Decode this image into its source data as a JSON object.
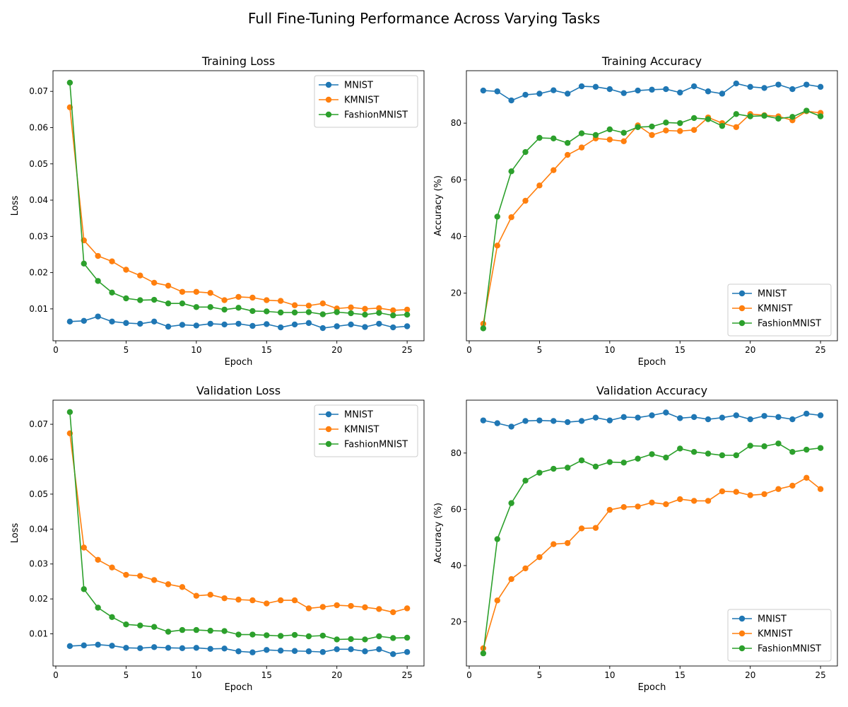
{
  "figure": {
    "title": "Full Fine-Tuning Performance Across Varying Tasks"
  },
  "colors": {
    "MNIST": "#1f77b4",
    "KMNIST": "#ff7f0e",
    "FashionMNIST": "#2ca02c"
  },
  "chart_data": [
    {
      "type": "line",
      "title": "Training Loss",
      "xlabel": "Epoch",
      "ylabel": "Loss",
      "xlim": [
        -0.2,
        26.2
      ],
      "ylim": [
        0.0012,
        0.0757
      ],
      "xticks": [
        0,
        5,
        10,
        15,
        20,
        25
      ],
      "yticks": [
        0.01,
        0.02,
        0.03,
        0.04,
        0.05,
        0.06,
        0.07
      ],
      "ytick_labels": [
        "0.01",
        "0.02",
        "0.03",
        "0.04",
        "0.05",
        "0.06",
        "0.07"
      ],
      "legend": "top-right",
      "grid": false,
      "x": [
        1,
        2,
        3,
        4,
        5,
        6,
        7,
        8,
        9,
        10,
        11,
        12,
        13,
        14,
        15,
        16,
        17,
        18,
        19,
        20,
        21,
        22,
        23,
        24,
        25
      ],
      "series": [
        {
          "name": "MNIST",
          "values": [
            0.0065,
            0.0067,
            0.0079,
            0.0065,
            0.0061,
            0.0059,
            0.0065,
            0.0051,
            0.0056,
            0.0054,
            0.0059,
            0.0057,
            0.0059,
            0.0053,
            0.0058,
            0.0049,
            0.0057,
            0.0061,
            0.0047,
            0.0052,
            0.0057,
            0.005,
            0.0059,
            0.0049,
            0.0052
          ]
        },
        {
          "name": "KMNIST",
          "values": [
            0.0656,
            0.0289,
            0.0246,
            0.0231,
            0.0208,
            0.0192,
            0.0172,
            0.0164,
            0.0147,
            0.0147,
            0.0144,
            0.0124,
            0.0133,
            0.0131,
            0.0124,
            0.0122,
            0.011,
            0.0109,
            0.0115,
            0.0101,
            0.0104,
            0.01,
            0.0102,
            0.0096,
            0.0098
          ]
        },
        {
          "name": "FashionMNIST",
          "values": [
            0.0724,
            0.0225,
            0.0177,
            0.0145,
            0.0129,
            0.0124,
            0.0125,
            0.0115,
            0.0115,
            0.0105,
            0.0105,
            0.0098,
            0.0103,
            0.0094,
            0.0093,
            0.009,
            0.009,
            0.0091,
            0.0085,
            0.0091,
            0.0088,
            0.0084,
            0.0089,
            0.0082,
            0.0084
          ]
        }
      ]
    },
    {
      "type": "line",
      "title": "Training Accuracy",
      "xlabel": "Epoch",
      "ylabel": "Accuracy (%)",
      "xlim": [
        -0.2,
        26.2
      ],
      "ylim": [
        3.2,
        98.5
      ],
      "xticks": [
        0,
        5,
        10,
        15,
        20,
        25
      ],
      "yticks": [
        20,
        40,
        60,
        80
      ],
      "ytick_labels": [
        "20",
        "40",
        "60",
        "80"
      ],
      "legend": "bottom-right",
      "grid": false,
      "x": [
        1,
        2,
        3,
        4,
        5,
        6,
        7,
        8,
        9,
        10,
        11,
        12,
        13,
        14,
        15,
        16,
        17,
        18,
        19,
        20,
        21,
        22,
        23,
        24,
        25
      ],
      "series": [
        {
          "name": "MNIST",
          "values": [
            91.5,
            91.2,
            88.0,
            90.0,
            90.4,
            91.6,
            90.4,
            93.0,
            92.8,
            92.0,
            90.6,
            91.5,
            91.8,
            92.0,
            90.8,
            93.0,
            91.2,
            90.4,
            94.0,
            92.8,
            92.4,
            93.6,
            92.0,
            93.6,
            92.8
          ]
        },
        {
          "name": "KMNIST",
          "values": [
            9.2,
            36.8,
            46.8,
            52.6,
            58.0,
            63.4,
            68.8,
            71.4,
            74.6,
            74.2,
            73.6,
            79.2,
            75.8,
            77.4,
            77.2,
            77.6,
            82.0,
            80.0,
            78.6,
            83.2,
            82.8,
            82.4,
            81.0,
            84.2,
            83.6
          ]
        },
        {
          "name": "FashionMNIST",
          "values": [
            7.6,
            47.0,
            63.0,
            69.8,
            74.8,
            74.6,
            73.0,
            76.4,
            75.8,
            77.8,
            76.6,
            78.6,
            78.8,
            80.2,
            80.0,
            81.8,
            81.4,
            79.0,
            83.2,
            82.4,
            82.6,
            81.6,
            82.2,
            84.4,
            82.4
          ]
        }
      ]
    },
    {
      "type": "line",
      "title": "Validation Loss",
      "xlabel": "Epoch",
      "ylabel": "Loss",
      "xlim": [
        -0.2,
        26.2
      ],
      "ylim": [
        0.0008,
        0.0769
      ],
      "xticks": [
        0,
        5,
        10,
        15,
        20,
        25
      ],
      "yticks": [
        0.01,
        0.02,
        0.03,
        0.04,
        0.05,
        0.06,
        0.07
      ],
      "ytick_labels": [
        "0.01",
        "0.02",
        "0.03",
        "0.04",
        "0.05",
        "0.06",
        "0.07"
      ],
      "legend": "top-right",
      "grid": false,
      "x": [
        1,
        2,
        3,
        4,
        5,
        6,
        7,
        8,
        9,
        10,
        11,
        12,
        13,
        14,
        15,
        16,
        17,
        18,
        19,
        20,
        21,
        22,
        23,
        24,
        25
      ],
      "series": [
        {
          "name": "MNIST",
          "values": [
            0.0065,
            0.0067,
            0.0069,
            0.0066,
            0.006,
            0.0059,
            0.0062,
            0.006,
            0.0059,
            0.006,
            0.0057,
            0.0058,
            0.005,
            0.0047,
            0.0054,
            0.0052,
            0.0051,
            0.005,
            0.0048,
            0.0056,
            0.0056,
            0.005,
            0.0056,
            0.0042,
            0.0048
          ]
        },
        {
          "name": "KMNIST",
          "values": [
            0.0674,
            0.0347,
            0.0312,
            0.029,
            0.0269,
            0.0266,
            0.0254,
            0.0242,
            0.0234,
            0.0209,
            0.0212,
            0.0202,
            0.0198,
            0.0196,
            0.0187,
            0.0196,
            0.0196,
            0.0173,
            0.0177,
            0.0182,
            0.018,
            0.0176,
            0.0171,
            0.0162,
            0.0173
          ]
        },
        {
          "name": "FashionMNIST",
          "values": [
            0.0735,
            0.0228,
            0.0175,
            0.0148,
            0.0127,
            0.0124,
            0.012,
            0.0106,
            0.0111,
            0.0111,
            0.0109,
            0.0108,
            0.0098,
            0.0098,
            0.0096,
            0.0094,
            0.0097,
            0.0093,
            0.0095,
            0.0084,
            0.0085,
            0.0084,
            0.0093,
            0.0088,
            0.0089
          ]
        }
      ]
    },
    {
      "type": "line",
      "title": "Validation Accuracy",
      "xlabel": "Epoch",
      "ylabel": "Accuracy (%)",
      "xlim": [
        -0.2,
        26.2
      ],
      "ylim": [
        4.3,
        98.8
      ],
      "xticks": [
        0,
        5,
        10,
        15,
        20,
        25
      ],
      "yticks": [
        20,
        40,
        60,
        80
      ],
      "ytick_labels": [
        "20",
        "40",
        "60",
        "80"
      ],
      "legend": "bottom-right",
      "grid": false,
      "x": [
        1,
        2,
        3,
        4,
        5,
        6,
        7,
        8,
        9,
        10,
        11,
        12,
        13,
        14,
        15,
        16,
        17,
        18,
        19,
        20,
        21,
        22,
        23,
        24,
        25
      ],
      "series": [
        {
          "name": "MNIST",
          "values": [
            91.6,
            90.6,
            89.4,
            91.4,
            91.6,
            91.4,
            91.0,
            91.4,
            92.6,
            91.6,
            92.8,
            92.6,
            93.4,
            94.4,
            92.4,
            92.8,
            92.0,
            92.6,
            93.4,
            92.0,
            93.2,
            92.8,
            92.0,
            94.0,
            93.4
          ]
        },
        {
          "name": "KMNIST",
          "values": [
            10.6,
            27.6,
            35.2,
            39.0,
            43.0,
            47.6,
            48.0,
            53.2,
            53.4,
            59.8,
            60.8,
            61.0,
            62.4,
            61.8,
            63.6,
            63.0,
            63.0,
            66.4,
            66.2,
            65.0,
            65.4,
            67.2,
            68.4,
            71.2,
            67.2
          ]
        },
        {
          "name": "FashionMNIST",
          "values": [
            8.8,
            49.4,
            62.2,
            70.2,
            73.0,
            74.4,
            74.8,
            77.4,
            75.2,
            76.8,
            76.6,
            78.0,
            79.6,
            78.4,
            81.6,
            80.4,
            79.8,
            79.2,
            79.2,
            82.6,
            82.4,
            83.4,
            80.4,
            81.2,
            81.8
          ]
        }
      ]
    }
  ]
}
